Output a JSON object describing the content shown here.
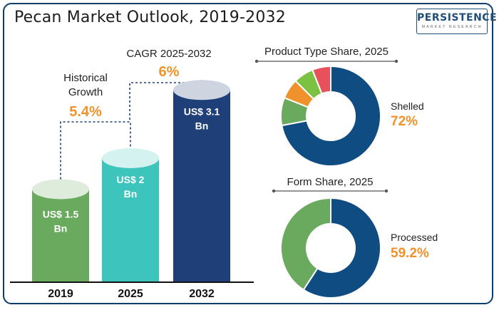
{
  "header": {
    "title": "Pecan Market Outlook, 2019-2032",
    "logo_main": "PERSISTENCE",
    "logo_sub": "MARKET RESEARCH"
  },
  "chart_data": [
    {
      "type": "bar",
      "categories": [
        "2019",
        "2025",
        "2032"
      ],
      "values": [
        1.5,
        2,
        3.1
      ],
      "value_labels": [
        [
          "US$ 1.5",
          "Bn"
        ],
        [
          "US$ 2",
          "Bn"
        ],
        [
          "US$ 3.1",
          "Bn"
        ]
      ],
      "colors": [
        "#6aaa5e",
        "#3cc4bd",
        "#1f3f78"
      ],
      "annotations": [
        {
          "label_lines": [
            "Historical",
            "Growth"
          ],
          "value": "5.4%"
        },
        {
          "label_lines": [
            "CAGR 2025-2032"
          ],
          "value": "6%"
        }
      ],
      "accent_color": "#f0922b"
    },
    {
      "type": "pie",
      "title": "Product Type Share, 2025",
      "highlight_label": "Shelled",
      "highlight_value": "72%",
      "segments": [
        {
          "label": "Shelled",
          "value": 72,
          "color": "#0f4c81"
        },
        {
          "label": "",
          "value": 9,
          "color": "#6aaa5e"
        },
        {
          "label": "",
          "value": 6.5,
          "color": "#f0922b"
        },
        {
          "label": "",
          "value": 6.5,
          "color": "#7cc242"
        },
        {
          "label": "",
          "value": 6,
          "color": "#e8505b"
        }
      ]
    },
    {
      "type": "pie",
      "title": "Form Share, 2025",
      "highlight_label": "Processed",
      "highlight_value": "59.2%",
      "segments": [
        {
          "label": "Processed",
          "value": 59.2,
          "color": "#0f4c81"
        },
        {
          "label": "",
          "value": 40.8,
          "color": "#6aaa5e"
        }
      ]
    }
  ]
}
